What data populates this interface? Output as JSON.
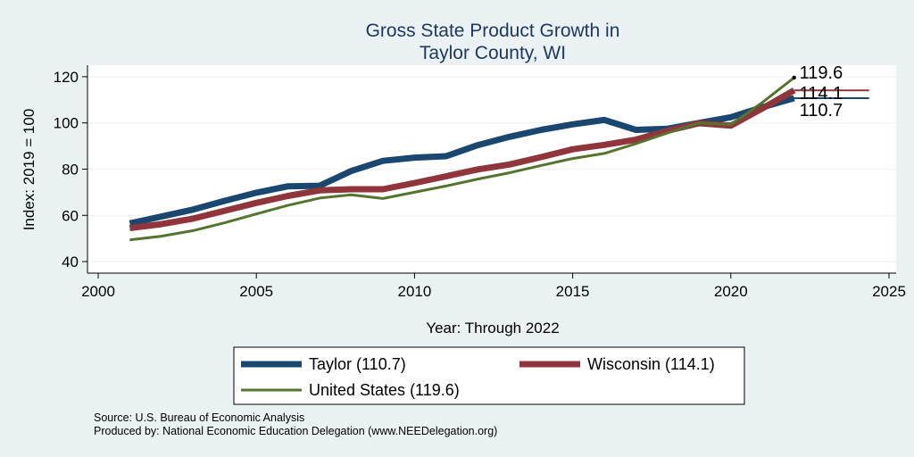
{
  "chart_data": {
    "type": "line",
    "title": [
      "Gross State Product Growth in",
      "Taylor County, WI"
    ],
    "xlabel": "Year: Through 2022",
    "ylabel": "Index: 2019 = 100",
    "xlim": [
      2000,
      2025
    ],
    "ylim": [
      35,
      125
    ],
    "xticks": [
      2000,
      2005,
      2010,
      2015,
      2020,
      2025
    ],
    "yticks": [
      40,
      60,
      80,
      100,
      120
    ],
    "grid": true,
    "legend_position": "bottom",
    "x": [
      2001,
      2002,
      2003,
      2004,
      2005,
      2006,
      2007,
      2008,
      2009,
      2010,
      2011,
      2012,
      2013,
      2014,
      2015,
      2016,
      2017,
      2018,
      2019,
      2020,
      2021,
      2022
    ],
    "series": [
      {
        "name": "Taylor",
        "legend_label": "Taylor  (110.7)",
        "color": "#1a476f",
        "width": 7,
        "end_label": "110.7",
        "values": [
          56.5,
          59.5,
          62.5,
          66.3,
          69.8,
          72.6,
          72.8,
          79.2,
          83.6,
          85.0,
          85.6,
          90.4,
          94.0,
          97.0,
          99.4,
          101.3,
          97.0,
          97.5,
          100.0,
          102.5,
          106.8,
          110.7
        ]
      },
      {
        "name": "Wisconsin",
        "legend_label": "Wisconsin (114.1)",
        "color": "#90353b",
        "width": 7,
        "end_label": "114.1",
        "values": [
          54.5,
          56.2,
          58.6,
          62.0,
          65.4,
          68.4,
          70.8,
          71.3,
          71.3,
          74.0,
          76.9,
          79.9,
          82.0,
          85.2,
          88.6,
          90.5,
          92.8,
          96.6,
          99.9,
          98.8,
          106.3,
          114.1
        ]
      },
      {
        "name": "United States",
        "legend_label": "United States (119.6)",
        "color": "#55752f",
        "width": 3,
        "end_label": "119.6",
        "values": [
          49.4,
          51.0,
          53.4,
          56.8,
          60.6,
          64.3,
          67.5,
          68.9,
          67.3,
          70.0,
          72.7,
          75.7,
          78.4,
          81.6,
          84.6,
          86.8,
          91.0,
          95.7,
          100.0,
          99.3,
          108.9,
          119.6
        ]
      }
    ]
  },
  "source": "Source: U.S. Bureau of Economic Analysis",
  "producer": "Produced by: National Economic Education Delegation (www.NEEDelegation.org)"
}
